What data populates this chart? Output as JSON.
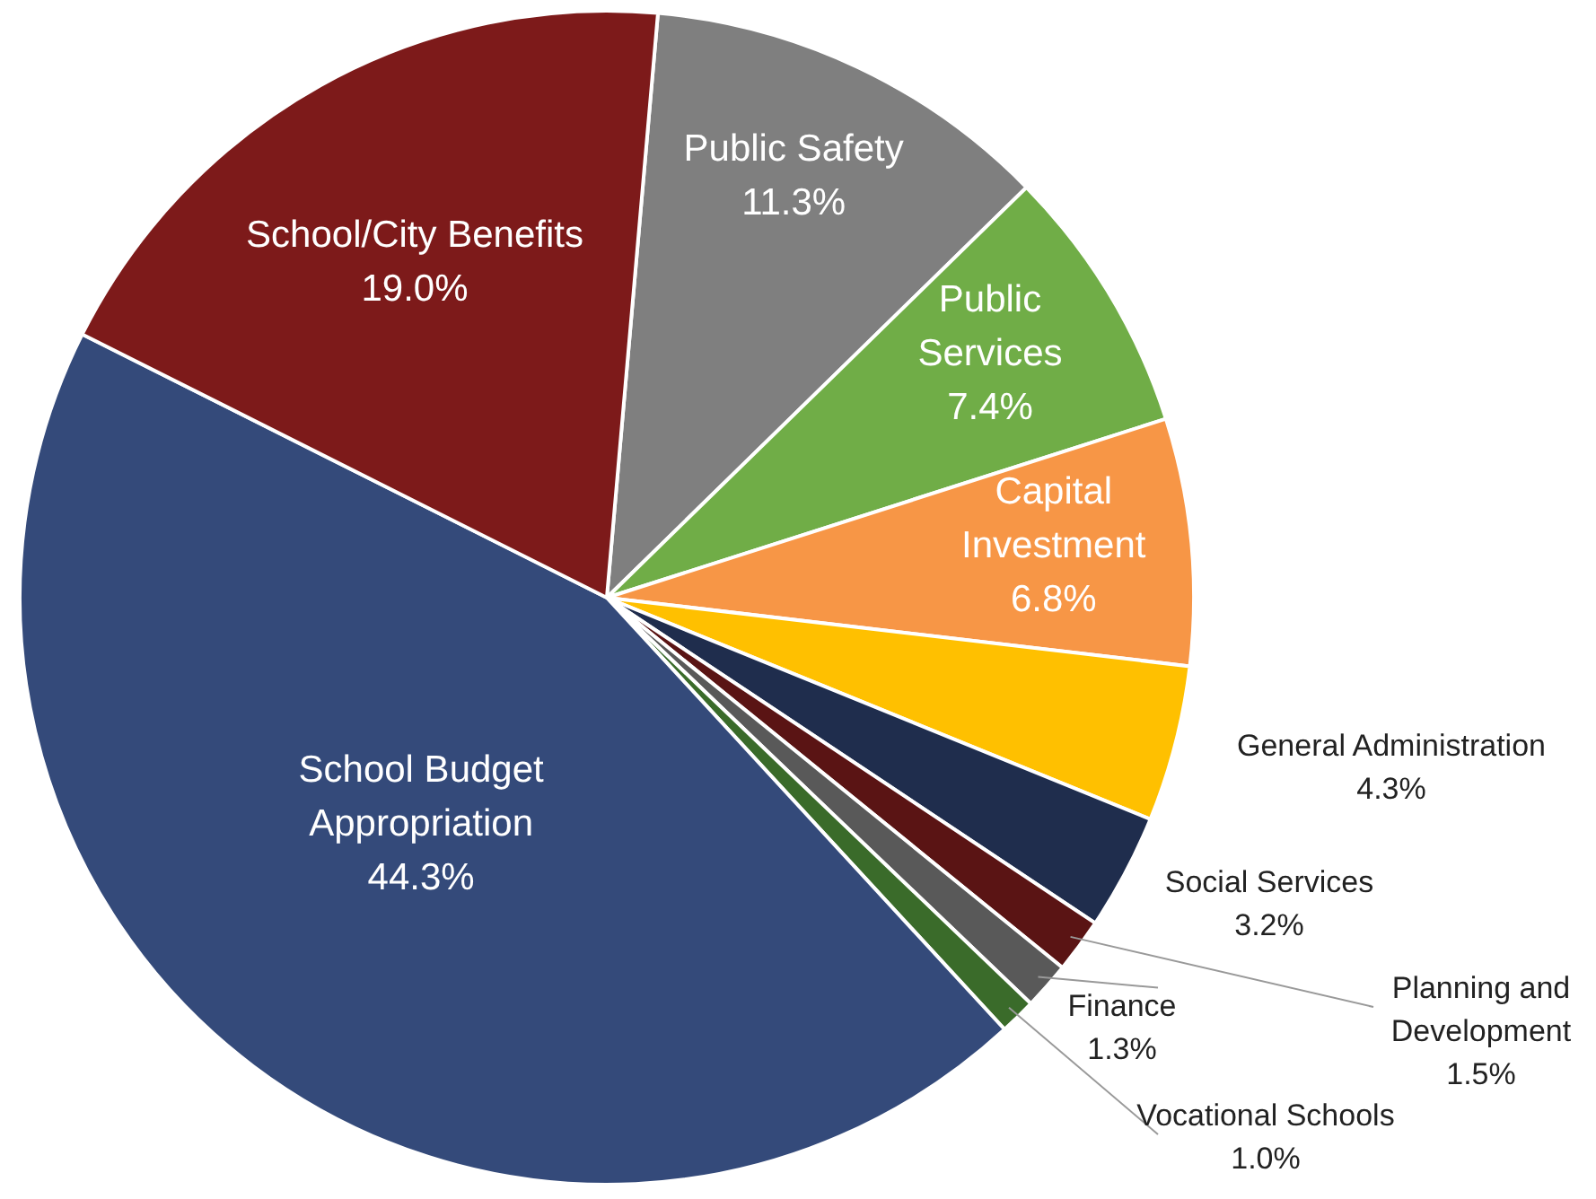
{
  "chart_data": {
    "type": "pie",
    "categories": [
      "Public Safety",
      "Public Services",
      "Capital Investment",
      "General Administration",
      "Social Services",
      "Planning and Development",
      "Finance",
      "Vocational Schools",
      "School Budget Appropriation",
      "School/City Benefits"
    ],
    "values": [
      11.3,
      7.4,
      6.8,
      4.3,
      3.2,
      1.5,
      1.3,
      1.0,
      44.3,
      19.0
    ],
    "value_labels": [
      "11.3%",
      "7.4%",
      "6.8%",
      "4.3%",
      "3.2%",
      "1.5%",
      "1.3%",
      "1.0%",
      "44.3%",
      "19.0%"
    ],
    "colors": [
      "#7f7f7f",
      "#70ad47",
      "#f79646",
      "#ffc000",
      "#1f2d4d",
      "#5a1414",
      "#595959",
      "#3a6b2a",
      "#344a7a",
      "#7d1a1a"
    ],
    "legend": false
  }
}
